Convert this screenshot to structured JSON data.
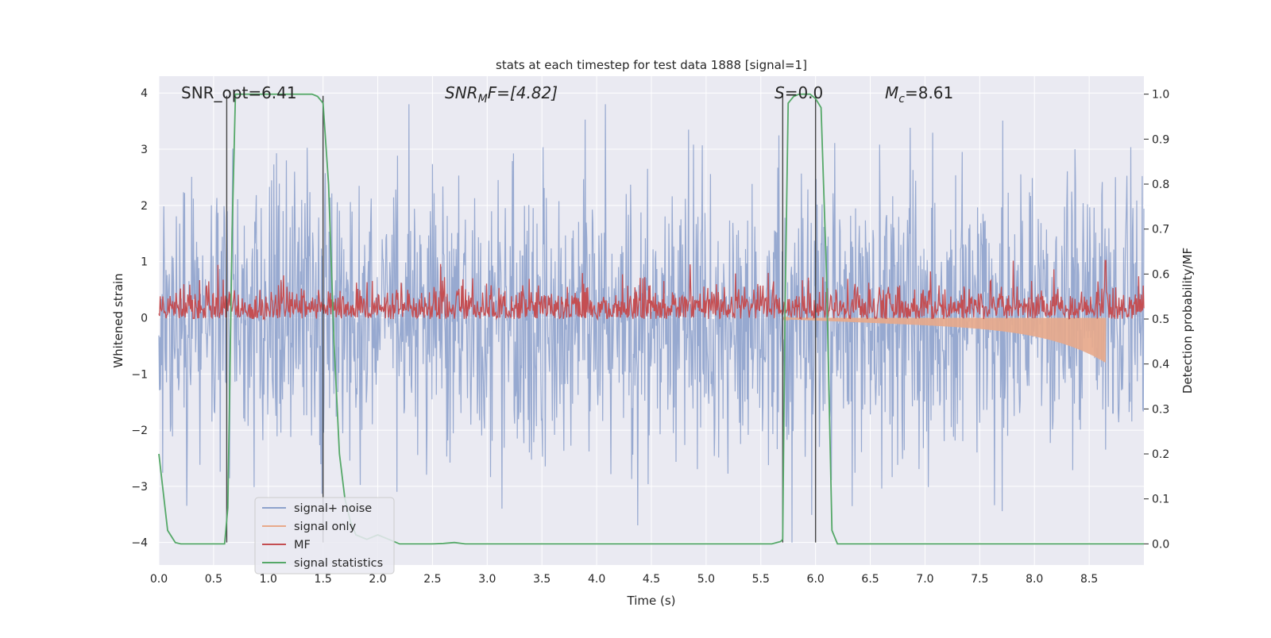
{
  "chart_data": {
    "type": "line",
    "title": "stats at each timestep for test data 1888 [signal=1]",
    "xlabel": "Time (s)",
    "ylabel_left": "Whitened strain",
    "ylabel_right": "Detection probability/MF",
    "xlim": [
      0,
      9.0
    ],
    "ylim_left": [
      -4.4,
      4.3
    ],
    "ylim_right": [
      -0.047,
      1.04
    ],
    "x_ticks": [
      0.0,
      0.5,
      1.0,
      1.5,
      2.0,
      2.5,
      3.0,
      3.5,
      4.0,
      4.5,
      5.0,
      5.5,
      6.0,
      6.5,
      7.0,
      7.5,
      8.0,
      8.5
    ],
    "x_tick_labels": [
      "0.0",
      "0.5",
      "1.0",
      "1.5",
      "2.0",
      "2.5",
      "3.0",
      "3.5",
      "4.0",
      "4.5",
      "5.0",
      "5.5",
      "6.0",
      "6.5",
      "7.0",
      "7.5",
      "8.0",
      "8.5"
    ],
    "y_left_ticks": [
      4,
      3,
      2,
      1,
      0,
      -1,
      -2,
      -3,
      -4
    ],
    "y_left_tick_labels": [
      "4",
      "3",
      "2",
      "1",
      "0",
      "−1",
      "−2",
      "−3",
      "−4"
    ],
    "y_right_ticks": [
      1.0,
      0.9,
      0.8,
      0.7,
      0.6,
      0.5,
      0.4,
      0.3,
      0.2,
      0.1,
      0.0
    ],
    "y_right_tick_labels": [
      "1.0",
      "0.9",
      "0.8",
      "0.7",
      "0.6",
      "0.5",
      "0.4",
      "0.3",
      "0.2",
      "0.1",
      "0.0"
    ],
    "grid": true,
    "legend_position": "lower-left",
    "series": [
      {
        "name": "signal+ noise",
        "color": "#8ea2cc",
        "axis": "left",
        "style": "noise",
        "range": [
          -4.0,
          4.0
        ]
      },
      {
        "name": "signal only",
        "color": "#e8a98a",
        "axis": "left",
        "style": "chirp",
        "start": 5.7,
        "end": 8.65,
        "peak_amplitude": -0.8
      },
      {
        "name": "MF",
        "color": "#c44e52",
        "axis": "right",
        "style": "noise",
        "baseline": 0.5,
        "range": [
          0.5,
          0.63
        ],
        "max_value": 0.63,
        "max_at": 8.65
      },
      {
        "name": "signal statistics",
        "color": "#55a868",
        "axis": "right",
        "x": [
          0.0,
          0.08,
          0.15,
          0.2,
          0.3,
          0.4,
          0.5,
          0.55,
          0.6,
          0.63,
          0.67,
          0.7,
          0.8,
          0.9,
          1.0,
          1.1,
          1.2,
          1.3,
          1.4,
          1.45,
          1.5,
          1.55,
          1.6,
          1.65,
          1.7,
          1.75,
          1.8,
          1.9,
          2.0,
          2.1,
          2.2,
          2.3,
          2.5,
          2.6,
          2.7,
          2.8,
          3.0,
          4.0,
          5.0,
          5.6,
          5.68,
          5.7,
          5.72,
          5.75,
          5.8,
          5.85,
          5.9,
          5.95,
          6.0,
          6.05,
          6.1,
          6.15,
          6.2,
          6.3,
          6.5,
          7.0,
          8.0,
          9.0
        ],
        "y": [
          0.2,
          0.03,
          0.003,
          0.0,
          0.0,
          0.0,
          0.0,
          0.0,
          0.0,
          0.08,
          0.7,
          1.0,
          1.0,
          1.0,
          1.0,
          1.0,
          1.0,
          1.0,
          1.0,
          0.995,
          0.98,
          0.8,
          0.45,
          0.2,
          0.1,
          0.05,
          0.02,
          0.01,
          0.02,
          0.01,
          0.0,
          0.0,
          0.0,
          0.001,
          0.003,
          0.0,
          0.0,
          0.0,
          0.0,
          0.0,
          0.005,
          0.01,
          0.5,
          0.98,
          0.995,
          1.0,
          1.0,
          1.0,
          0.99,
          0.97,
          0.6,
          0.03,
          0.0,
          0.0,
          0.0,
          0.0,
          0.0,
          0.0
        ]
      }
    ],
    "vertical_markers": [
      0.62,
      1.5,
      5.7,
      6.0
    ],
    "annotations": [
      {
        "text": "SNR_opt=6.41",
        "x": 0.19
      },
      {
        "text": "SNR_MF=[4.82]",
        "x": 2.6
      },
      {
        "text": "S=0.0",
        "x": 5.62
      },
      {
        "text": "M_c=8.61",
        "x": 6.6
      }
    ]
  },
  "annotations_text": {
    "snr_opt": "SNR_opt=6.41",
    "snr_mf_main": "SNR",
    "snr_mf_sub": "M",
    "snr_mf_rest": "F=[4.82]",
    "s_main": "S",
    "s_rest": "=0.0",
    "mc_main": "M",
    "mc_sub": "c",
    "mc_rest": "=8.61"
  },
  "legend": [
    {
      "label": "signal+ noise",
      "color": "#8ea2cc"
    },
    {
      "label": "signal only",
      "color": "#e8a98a"
    },
    {
      "label": "MF",
      "color": "#c44e52"
    },
    {
      "label": "signal statistics",
      "color": "#55a868"
    }
  ]
}
